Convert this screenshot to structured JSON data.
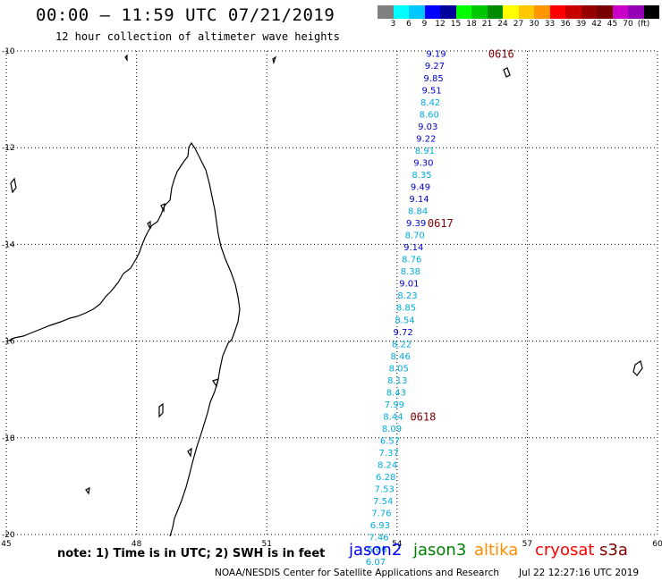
{
  "header": {
    "title": "00:00 – 11:59 UTC 07/21/2019",
    "subtitle": "12 hour collection of altimeter wave heights"
  },
  "colorbar": {
    "colors": [
      "#808080",
      "#00ffff",
      "#00c8ff",
      "#0000ff",
      "#00009c",
      "#00ff00",
      "#00c800",
      "#008c00",
      "#ffff00",
      "#ffc800",
      "#ff9600",
      "#ff0000",
      "#c80000",
      "#960000",
      "#780000",
      "#c800c8",
      "#9600b4",
      "#000000"
    ],
    "labels": [
      "3",
      "6",
      "9",
      "12",
      "15",
      "18",
      "21",
      "24",
      "27",
      "30",
      "33",
      "36",
      "39",
      "42",
      "45",
      "70",
      "(ft)"
    ]
  },
  "map": {
    "lon_ticks": [
      "45",
      "48",
      "51",
      "54",
      "57",
      "60"
    ],
    "lat_ticks": [
      "-10",
      "-12",
      "-14",
      "-16",
      "-18",
      "-20"
    ],
    "lon_range": [
      45,
      60
    ],
    "lat_range": [
      -20,
      -10
    ],
    "grid": true,
    "time_markers": [
      {
        "label": "0616",
        "lon": 56.4,
        "lat": -10.05,
        "color": "#800000"
      },
      {
        "label": "0617",
        "lon": 55.0,
        "lat": -13.55,
        "color": "#800000"
      },
      {
        "label": "0618",
        "lon": 54.6,
        "lat": -17.55,
        "color": "#800000"
      }
    ]
  },
  "chart_data": {
    "type": "scatter",
    "title": "12 hour collection of altimeter wave heights",
    "xlabel": "",
    "ylabel": "",
    "xlim": [
      45,
      60
    ],
    "ylim": [
      -20,
      -10
    ],
    "units": "ft",
    "series": [
      {
        "name": "jason2",
        "color": "#0000ff",
        "points": [
          {
            "lon": 54.9,
            "lat": -10.05,
            "swh": "9.19",
            "c": "#0000cd"
          },
          {
            "lon": 54.87,
            "lat": -10.3,
            "swh": "9.27",
            "c": "#0000cd"
          },
          {
            "lon": 54.84,
            "lat": -10.55,
            "swh": "9.85",
            "c": "#0000cd"
          },
          {
            "lon": 54.8,
            "lat": -10.8,
            "swh": "9.51",
            "c": "#0000cd"
          },
          {
            "lon": 54.77,
            "lat": -11.05,
            "swh": "8.42",
            "c": "#00aadd"
          },
          {
            "lon": 54.74,
            "lat": -11.3,
            "swh": "8.60",
            "c": "#00aadd"
          },
          {
            "lon": 54.71,
            "lat": -11.55,
            "swh": "9.03",
            "c": "#0000cd"
          },
          {
            "lon": 54.67,
            "lat": -11.8,
            "swh": "9.22",
            "c": "#0000cd"
          },
          {
            "lon": 54.64,
            "lat": -12.05,
            "swh": "8.91",
            "c": "#00aadd"
          },
          {
            "lon": 54.61,
            "lat": -12.3,
            "swh": "9.30",
            "c": "#0000cd"
          },
          {
            "lon": 54.57,
            "lat": -12.55,
            "swh": "8.35",
            "c": "#00aadd"
          },
          {
            "lon": 54.54,
            "lat": -12.8,
            "swh": "9.49",
            "c": "#0000cd"
          },
          {
            "lon": 54.51,
            "lat": -13.05,
            "swh": "9.14",
            "c": "#0000cd"
          },
          {
            "lon": 54.48,
            "lat": -13.3,
            "swh": "8.84",
            "c": "#00aadd"
          },
          {
            "lon": 54.44,
            "lat": -13.55,
            "swh": "9.39",
            "c": "#0000cd"
          },
          {
            "lon": 54.41,
            "lat": -13.8,
            "swh": "8.70",
            "c": "#00aadd"
          },
          {
            "lon": 54.38,
            "lat": -14.05,
            "swh": "9.14",
            "c": "#0000cd"
          },
          {
            "lon": 54.34,
            "lat": -14.3,
            "swh": "8.76",
            "c": "#00aadd"
          },
          {
            "lon": 54.31,
            "lat": -14.55,
            "swh": "8.38",
            "c": "#00aadd"
          },
          {
            "lon": 54.28,
            "lat": -14.8,
            "swh": "9.01",
            "c": "#0000cd"
          },
          {
            "lon": 54.24,
            "lat": -15.05,
            "swh": "8.23",
            "c": "#00aadd"
          },
          {
            "lon": 54.21,
            "lat": -15.3,
            "swh": "8.85",
            "c": "#00aadd"
          },
          {
            "lon": 54.18,
            "lat": -15.55,
            "swh": "8.54",
            "c": "#00aadd"
          },
          {
            "lon": 54.14,
            "lat": -15.8,
            "swh": "9.72",
            "c": "#0000cd"
          },
          {
            "lon": 54.11,
            "lat": -16.05,
            "swh": "8.22",
            "c": "#00aadd"
          },
          {
            "lon": 54.08,
            "lat": -16.3,
            "swh": "8.46",
            "c": "#00aadd"
          },
          {
            "lon": 54.04,
            "lat": -16.55,
            "swh": "8.05",
            "c": "#00aadd"
          },
          {
            "lon": 54.01,
            "lat": -16.8,
            "swh": "8.13",
            "c": "#00aadd"
          },
          {
            "lon": 53.98,
            "lat": -17.05,
            "swh": "8.43",
            "c": "#00aadd"
          },
          {
            "lon": 53.94,
            "lat": -17.3,
            "swh": "7.99",
            "c": "#00aadd"
          },
          {
            "lon": 53.91,
            "lat": -17.55,
            "swh": "8.44",
            "c": "#00aadd"
          },
          {
            "lon": 53.88,
            "lat": -17.8,
            "swh": "8.09",
            "c": "#00aadd"
          },
          {
            "lon": 53.84,
            "lat": -18.05,
            "swh": "6.57",
            "c": "#00aadd"
          },
          {
            "lon": 53.81,
            "lat": -18.3,
            "swh": "7.37",
            "c": "#00aadd"
          },
          {
            "lon": 53.78,
            "lat": -18.55,
            "swh": "8.24",
            "c": "#00aadd"
          },
          {
            "lon": 53.74,
            "lat": -18.8,
            "swh": "6.28",
            "c": "#00aadd"
          },
          {
            "lon": 53.71,
            "lat": -19.05,
            "swh": "7.53",
            "c": "#00aadd"
          },
          {
            "lon": 53.68,
            "lat": -19.3,
            "swh": "7.54",
            "c": "#00aadd"
          },
          {
            "lon": 53.64,
            "lat": -19.55,
            "swh": "7.76",
            "c": "#00aadd"
          },
          {
            "lon": 53.61,
            "lat": -19.8,
            "swh": "6.93",
            "c": "#00aadd"
          },
          {
            "lon": 53.58,
            "lat": -20.05,
            "swh": "7.46",
            "c": "#00aadd"
          },
          {
            "lon": 53.54,
            "lat": -20.3,
            "swh": "6.06",
            "c": "#00aadd"
          },
          {
            "lon": 53.51,
            "lat": -20.55,
            "swh": "6.07",
            "c": "#00aadd"
          }
        ]
      }
    ]
  },
  "footer": {
    "note": "note: 1) Time is in UTC; 2) SWH is in feet",
    "satellites": [
      {
        "name": "jason2",
        "color": "#0000ff"
      },
      {
        "name": "jason3",
        "color": "#008000"
      },
      {
        "name": "altika",
        "color": "#ff8c00"
      },
      {
        "name": "cryosat",
        "color": "#ff0000"
      },
      {
        "name": "s3a",
        "color": "#800000"
      }
    ],
    "credit": "NOAA/NESDIS Center for Satellite Applications and Research",
    "generated": "Jul 22 12:27:16 UTC 2019"
  }
}
